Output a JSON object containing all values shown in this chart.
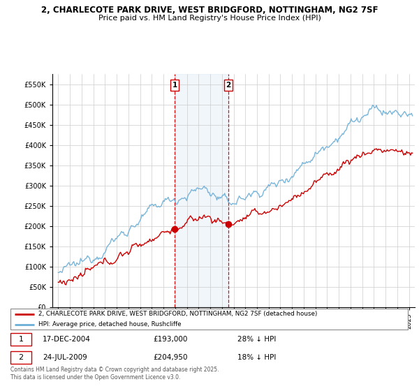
{
  "title_line1": "2, CHARLECOTE PARK DRIVE, WEST BRIDGFORD, NOTTINGHAM, NG2 7SF",
  "title_line2": "Price paid vs. HM Land Registry's House Price Index (HPI)",
  "legend_line1": "2, CHARLECOTE PARK DRIVE, WEST BRIDGFORD, NOTTINGHAM, NG2 7SF (detached house)",
  "legend_line2": "HPI: Average price, detached house, Rushcliffe",
  "footer": "Contains HM Land Registry data © Crown copyright and database right 2025.\nThis data is licensed under the Open Government Licence v3.0.",
  "sale1_date": "17-DEC-2004",
  "sale1_price": 193000,
  "sale1_note": "28% ↓ HPI",
  "sale2_date": "24-JUL-2009",
  "sale2_price": 204950,
  "sale2_note": "18% ↓ HPI",
  "sale1_x": 2004.96,
  "sale2_x": 2009.56,
  "hpi_color": "#6baed6",
  "price_color": "#cc0000",
  "vline_color": "#cc0000",
  "highlight_color": "#ddeeff",
  "ylim": [
    0,
    575000
  ],
  "yticks": [
    0,
    50000,
    100000,
    150000,
    200000,
    250000,
    300000,
    350000,
    400000,
    450000,
    500000,
    550000
  ],
  "xlim_start": 1994.5,
  "xlim_end": 2025.5
}
